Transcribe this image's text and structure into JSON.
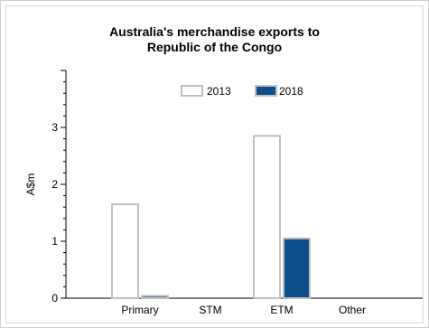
{
  "chart_data": {
    "type": "bar",
    "title_line1": "Australia's merchandise exports to",
    "title_line2": "Republic of the Congo",
    "xlabel": "",
    "ylabel": "A$m",
    "ylim": [
      0,
      4
    ],
    "yticks": [
      "0",
      "1",
      "2",
      "3"
    ],
    "categories": [
      "Primary",
      "STM",
      "ETM",
      "Other"
    ],
    "series": [
      {
        "name": "2013",
        "values": [
          1.65,
          0,
          2.85,
          0
        ],
        "color": "#ffffff",
        "stroke": "#c0c0c0"
      },
      {
        "name": "2018",
        "values": [
          0.04,
          0,
          1.05,
          0
        ],
        "color": "#0d4f8b",
        "stroke": "#c0c0c0"
      }
    ],
    "legend_position": "top-center",
    "grid": false
  }
}
